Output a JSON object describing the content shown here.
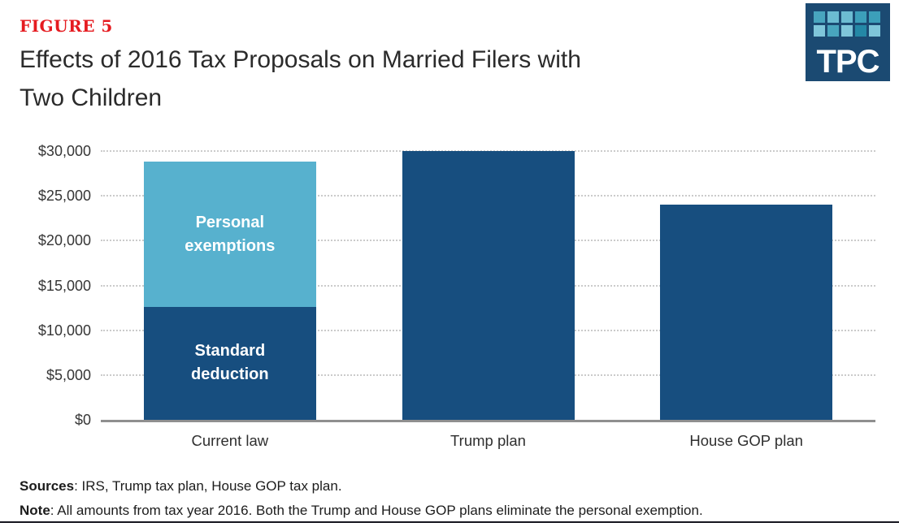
{
  "figure_label": "FIGURE 5",
  "title_lines": [
    "Effects of 2016 Tax Proposals on Married Filers with",
    "Two Children"
  ],
  "logo": {
    "text": "TPC",
    "background": "#1b4a72",
    "square_colors": [
      "#48a5be",
      "#6cbcd2",
      "#6cbcd2",
      "#3c9fba",
      "#3c9fba",
      "#7fc6da",
      "#48a5be",
      "#7fc6da",
      "#2488a6",
      "#7fc6da"
    ]
  },
  "chart_data": {
    "type": "bar",
    "stacked": true,
    "title": "Effects of 2016 Tax Proposals on Married Filers with Two Children",
    "categories": [
      "Current law",
      "Trump plan",
      "House GOP plan"
    ],
    "series": [
      {
        "name": "Standard deduction",
        "color": "#174e7f",
        "values": [
          12600,
          30000,
          24000
        ]
      },
      {
        "name": "Personal exemptions",
        "color": "#57b1ce",
        "values": [
          16200,
          0,
          0
        ]
      }
    ],
    "ylim": [
      0,
      30000
    ],
    "yticks": [
      {
        "label": "$0",
        "value": 0
      },
      {
        "label": "$5,000",
        "value": 5000
      },
      {
        "label": "$10,000",
        "value": 10000
      },
      {
        "label": "$15,000",
        "value": 15000
      },
      {
        "label": "$20,000",
        "value": 20000
      },
      {
        "label": "$25,000",
        "value": 25000
      },
      {
        "label": "$30,000",
        "value": 30000
      }
    ],
    "grid": "horizontal-dotted",
    "legend": "labels-inside-stacked-bar",
    "xlabel": "",
    "ylabel": ""
  },
  "footer": {
    "sources_label": "Sources",
    "sources_text": ": IRS, Trump tax plan, House GOP tax plan.",
    "note_label": "Note",
    "note_text": ": All amounts from tax year 2016. Both the Trump and House GOP plans eliminate the personal exemption."
  }
}
